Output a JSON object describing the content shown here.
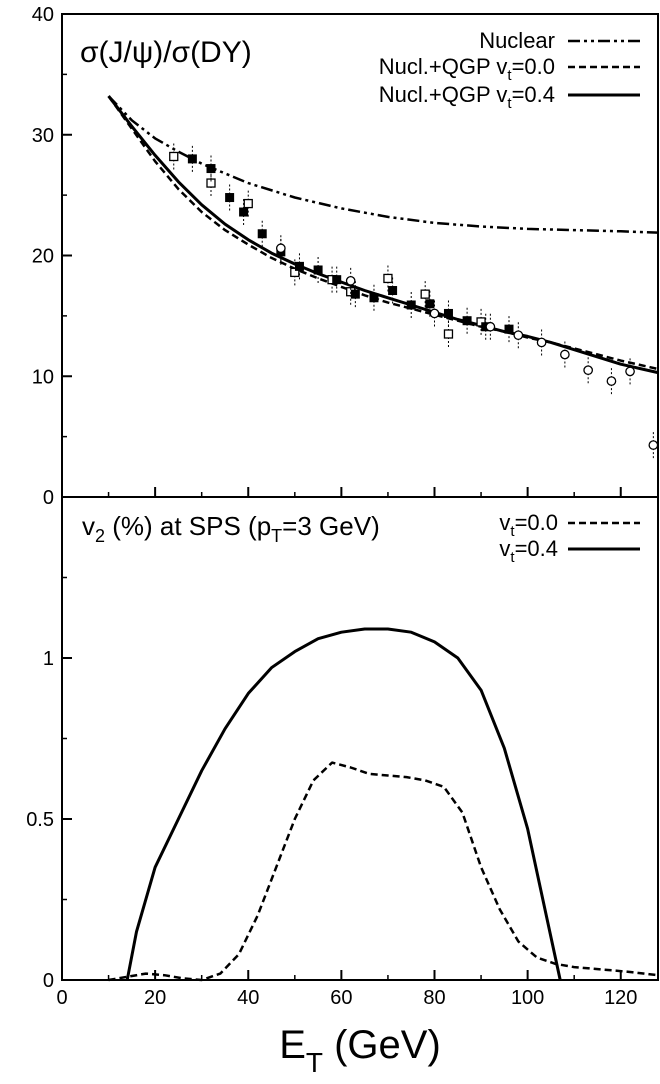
{
  "chart_data": [
    {
      "type": "line",
      "panel": "top",
      "title": "σ(J/ψ)/σ(DY)",
      "xlim": [
        0,
        128
      ],
      "ylim": [
        0,
        40
      ],
      "y_ticks": [
        0,
        10,
        20,
        30,
        40
      ],
      "legend": [
        {
          "name": "Nuclear",
          "style": "dash-dot"
        },
        {
          "name": "Nucl.+QGP v",
          "sub": "t",
          "suffix": "=0.0",
          "style": "dashed"
        },
        {
          "name": "Nucl.+QGP v",
          "sub": "t",
          "suffix": "=0.4",
          "style": "solid"
        }
      ],
      "series": [
        {
          "key": "nuclear",
          "style": "dash-dot",
          "x": [
            10,
            15,
            20,
            25,
            30,
            40,
            50,
            60,
            70,
            80,
            90,
            100,
            110,
            120,
            128
          ],
          "y": [
            33.2,
            31.2,
            29.7,
            28.6,
            27.6,
            26.0,
            24.8,
            23.9,
            23.2,
            22.7,
            22.4,
            22.2,
            22.1,
            22.0,
            21.9
          ]
        },
        {
          "key": "qgp_v00",
          "style": "dashed",
          "x": [
            10,
            15,
            20,
            25,
            30,
            35,
            40,
            45,
            50,
            55,
            60,
            65,
            70,
            75,
            80,
            85,
            90,
            95,
            100,
            105,
            110,
            115,
            120,
            128
          ],
          "y": [
            33.2,
            30.5,
            27.8,
            25.5,
            23.6,
            22.1,
            20.9,
            19.8,
            18.9,
            18.1,
            17.4,
            16.7,
            16.1,
            15.6,
            15.1,
            14.6,
            14.1,
            13.7,
            13.2,
            12.8,
            12.3,
            11.8,
            11.3,
            10.6
          ]
        },
        {
          "key": "qgp_v04",
          "style": "solid",
          "x": [
            10,
            15,
            20,
            25,
            30,
            35,
            40,
            45,
            50,
            55,
            60,
            65,
            70,
            75,
            80,
            85,
            90,
            95,
            100,
            105,
            110,
            115,
            120,
            128
          ],
          "y": [
            33.2,
            30.7,
            28.3,
            26.1,
            24.2,
            22.6,
            21.3,
            20.2,
            19.3,
            18.5,
            17.8,
            17.1,
            16.5,
            15.9,
            15.3,
            14.7,
            14.2,
            13.7,
            13.3,
            12.8,
            12.2,
            11.6,
            11.0,
            10.3
          ]
        }
      ],
      "points": [
        {
          "marker": "open-square",
          "x": 24,
          "y": 28.2
        },
        {
          "marker": "open-square",
          "x": 32,
          "y": 26.0
        },
        {
          "marker": "open-square",
          "x": 40,
          "y": 24.3
        },
        {
          "marker": "open-square",
          "x": 50,
          "y": 18.6
        },
        {
          "marker": "open-square",
          "x": 58,
          "y": 18.0
        },
        {
          "marker": "open-square",
          "x": 62,
          "y": 17.0
        },
        {
          "marker": "open-square",
          "x": 70,
          "y": 18.1
        },
        {
          "marker": "open-square",
          "x": 78,
          "y": 16.8
        },
        {
          "marker": "open-square",
          "x": 83,
          "y": 13.5
        },
        {
          "marker": "open-square",
          "x": 90,
          "y": 14.5
        },
        {
          "marker": "filled-square",
          "x": 28,
          "y": 28.0
        },
        {
          "marker": "filled-square",
          "x": 32,
          "y": 27.2
        },
        {
          "marker": "filled-square",
          "x": 36,
          "y": 24.8
        },
        {
          "marker": "filled-square",
          "x": 39,
          "y": 23.6
        },
        {
          "marker": "filled-square",
          "x": 43,
          "y": 21.8
        },
        {
          "marker": "filled-square",
          "x": 47,
          "y": 20.3
        },
        {
          "marker": "filled-square",
          "x": 51,
          "y": 19.1
        },
        {
          "marker": "filled-square",
          "x": 55,
          "y": 18.8
        },
        {
          "marker": "filled-square",
          "x": 59,
          "y": 18.0
        },
        {
          "marker": "filled-square",
          "x": 63,
          "y": 16.8
        },
        {
          "marker": "filled-square",
          "x": 67,
          "y": 16.5
        },
        {
          "marker": "filled-square",
          "x": 71,
          "y": 17.1
        },
        {
          "marker": "filled-square",
          "x": 75,
          "y": 15.9
        },
        {
          "marker": "filled-square",
          "x": 79,
          "y": 16.0
        },
        {
          "marker": "filled-square",
          "x": 83,
          "y": 15.2
        },
        {
          "marker": "filled-square",
          "x": 87,
          "y": 14.6
        },
        {
          "marker": "filled-square",
          "x": 91,
          "y": 14.1
        },
        {
          "marker": "filled-square",
          "x": 96,
          "y": 13.9
        },
        {
          "marker": "open-circle",
          "x": 47,
          "y": 20.6
        },
        {
          "marker": "open-circle",
          "x": 62,
          "y": 17.9
        },
        {
          "marker": "open-circle",
          "x": 80,
          "y": 15.2
        },
        {
          "marker": "open-circle",
          "x": 92,
          "y": 14.1
        },
        {
          "marker": "open-circle",
          "x": 98,
          "y": 13.4
        },
        {
          "marker": "open-circle",
          "x": 103,
          "y": 12.8
        },
        {
          "marker": "open-circle",
          "x": 108,
          "y": 11.8
        },
        {
          "marker": "open-circle",
          "x": 113,
          "y": 10.5
        },
        {
          "marker": "open-circle",
          "x": 118,
          "y": 9.6
        },
        {
          "marker": "open-circle",
          "x": 122,
          "y": 10.4
        },
        {
          "marker": "open-circle",
          "x": 127,
          "y": 4.3
        }
      ]
    },
    {
      "type": "line",
      "panel": "bottom",
      "title": "v",
      "title_sub": "2",
      "title_mid": " (%) at SPS (p",
      "title_sub2": "T",
      "title_end": "=3 GeV)",
      "xlim": [
        0,
        128
      ],
      "ylim": [
        0,
        1.5
      ],
      "y_ticks": [
        0,
        0.5,
        1
      ],
      "y_tick_labels": [
        "0",
        "0.5",
        "1"
      ],
      "x_ticks": [
        0,
        20,
        40,
        60,
        80,
        100,
        120
      ],
      "x_tick_labels": [
        "0",
        "20",
        "40",
        "60",
        "80",
        "100",
        "120"
      ],
      "xlabel": "E",
      "xlabel_sub": "T",
      "xlabel_end": " (GeV)",
      "legend": [
        {
          "name": "v",
          "sub": "t",
          "suffix": "=0.0",
          "style": "dashed"
        },
        {
          "name": "v",
          "sub": "t",
          "suffix": "=0.4",
          "style": "solid"
        }
      ],
      "series": [
        {
          "key": "v2_v00",
          "style": "dashed",
          "x": [
            10,
            14,
            18,
            22,
            26,
            30,
            34,
            38,
            42,
            46,
            50,
            54,
            58,
            62,
            66,
            70,
            74,
            78,
            82,
            86,
            90,
            94,
            98,
            102,
            106,
            110,
            114,
            118,
            122,
            128
          ],
          "y": [
            0.0,
            0.01,
            0.02,
            0.015,
            0.005,
            0.0,
            0.02,
            0.08,
            0.2,
            0.35,
            0.5,
            0.62,
            0.675,
            0.66,
            0.64,
            0.635,
            0.63,
            0.62,
            0.6,
            0.52,
            0.35,
            0.22,
            0.12,
            0.07,
            0.05,
            0.04,
            0.035,
            0.03,
            0.025,
            0.015
          ]
        },
        {
          "key": "v2_v04",
          "style": "solid",
          "x": [
            14,
            16,
            20,
            25,
            30,
            35,
            40,
            45,
            50,
            55,
            60,
            65,
            70,
            75,
            80,
            85,
            90,
            95,
            100,
            104,
            107
          ],
          "y": [
            0.0,
            0.15,
            0.35,
            0.5,
            0.65,
            0.78,
            0.89,
            0.97,
            1.02,
            1.06,
            1.08,
            1.09,
            1.09,
            1.08,
            1.05,
            1.0,
            0.9,
            0.72,
            0.47,
            0.2,
            0.0
          ]
        }
      ]
    }
  ]
}
